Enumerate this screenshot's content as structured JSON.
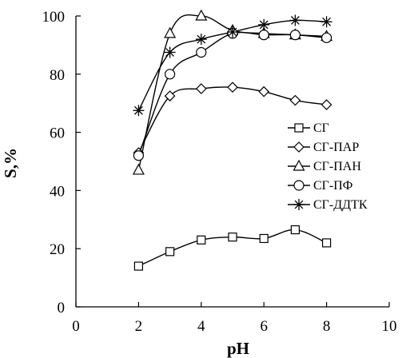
{
  "chart_data": {
    "type": "line",
    "xlabel": "pH",
    "ylabel": "S,%",
    "xlim": [
      0,
      10
    ],
    "ylim": [
      0,
      100
    ],
    "x_ticks": [
      "0",
      "2",
      "4",
      "6",
      "8",
      "10"
    ],
    "y_ticks": [
      "0",
      "20",
      "40",
      "60",
      "80",
      "100"
    ],
    "grid": false,
    "legend_position": "right",
    "x": [
      2,
      3,
      4,
      5,
      6,
      7,
      8
    ],
    "series": [
      {
        "name": "СГ",
        "marker": "square",
        "values": [
          14,
          19,
          23,
          24,
          23.5,
          26.5,
          22
        ]
      },
      {
        "name": "СГ-ПАР",
        "marker": "diamond",
        "values": [
          53,
          72.5,
          75,
          75.5,
          74,
          71,
          69.5
        ]
      },
      {
        "name": "СГ-ПАН",
        "marker": "triangle",
        "values": [
          47,
          94,
          100,
          95,
          94,
          93.5,
          93
        ]
      },
      {
        "name": "СГ-ПФ",
        "marker": "circle",
        "values": [
          52,
          80,
          87.5,
          94,
          93.5,
          93.5,
          92.5
        ]
      },
      {
        "name": "СГ-ДДТК",
        "marker": "star",
        "values": [
          67.5,
          87.5,
          92,
          94.5,
          97,
          98.5,
          98
        ]
      }
    ]
  }
}
